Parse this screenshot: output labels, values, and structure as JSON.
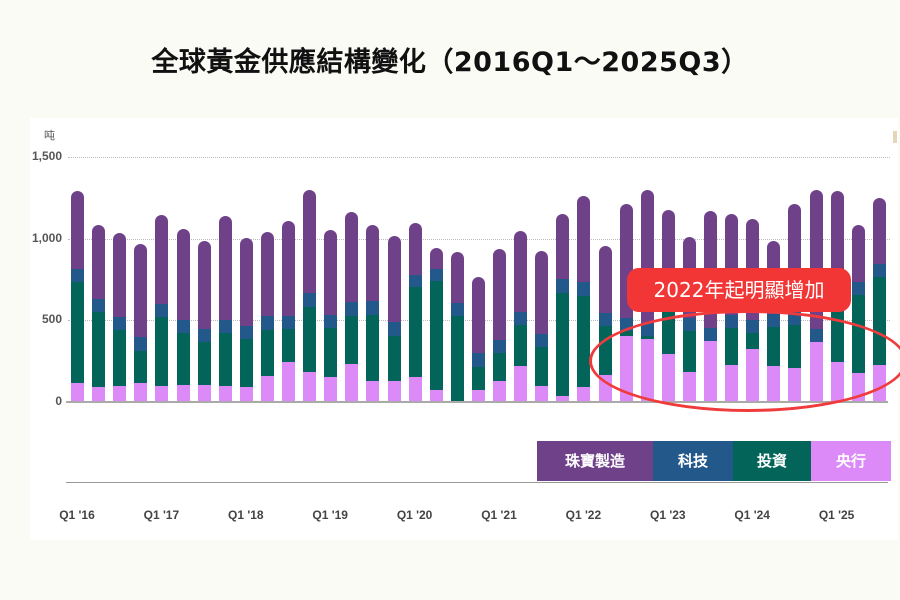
{
  "title": "全球黃金供應結構變化（2016Q1～2025Q3）",
  "chart": {
    "unit": "吨",
    "y_ticks": [
      "1,500",
      "1,000",
      "500",
      "0"
    ],
    "x_ticks": [
      "Q1 '16",
      "Q1 '17",
      "Q1 '18",
      "Q1 '19",
      "Q1 '20",
      "Q1 '21",
      "Q1 '22",
      "Q1 '23",
      "Q1 '24",
      "Q1 '25"
    ],
    "legend": [
      {
        "label": "珠寶製造",
        "color": "#6e4189"
      },
      {
        "label": "科技",
        "color": "#22588a"
      },
      {
        "label": "投資",
        "color": "#03645a"
      },
      {
        "label": "央行",
        "color": "#db8af7"
      }
    ],
    "annotation": "2022年起明顯增加"
  },
  "chart_data": {
    "type": "bar",
    "stacked": true,
    "title": "全球黃金供應結構變化（2016Q1～2025Q3）",
    "xlabel": "",
    "ylabel": "吨",
    "ylim": [
      0,
      1500
    ],
    "y_ticks": [
      0,
      500,
      1000,
      1500
    ],
    "grid": true,
    "legend_position": "bottom-right",
    "annotation": "2022年起明顯增加",
    "categories": [
      "2016Q1",
      "2016Q2",
      "2016Q3",
      "2016Q4",
      "2017Q1",
      "2017Q2",
      "2017Q3",
      "2017Q4",
      "2018Q1",
      "2018Q2",
      "2018Q3",
      "2018Q4",
      "2019Q1",
      "2019Q2",
      "2019Q3",
      "2019Q4",
      "2020Q1",
      "2020Q2",
      "2020Q3",
      "2020Q4",
      "2021Q1",
      "2021Q2",
      "2021Q3",
      "2021Q4",
      "2022Q1",
      "2022Q2",
      "2022Q3",
      "2022Q4",
      "2023Q1",
      "2023Q2",
      "2023Q3",
      "2023Q4",
      "2024Q1",
      "2024Q2",
      "2024Q3",
      "2024Q4",
      "2025Q1",
      "2025Q2",
      "2025Q3"
    ],
    "series": [
      {
        "name": "央行",
        "color": "#db8af7",
        "values": [
          110,
          85,
          95,
          110,
          95,
          100,
          100,
          95,
          85,
          155,
          240,
          180,
          145,
          230,
          120,
          120,
          145,
          70,
          -10,
          70,
          120,
          215,
          90,
          30,
          85,
          160,
          400,
          380,
          290,
          180,
          370,
          220,
          320,
          215,
          200,
          360,
          240,
          170,
          220
        ]
      },
      {
        "name": "投資",
        "color": "#03645a",
        "values": [
          620,
          460,
          340,
          200,
          420,
          315,
          260,
          325,
          295,
          280,
          200,
          400,
          305,
          295,
          410,
          280,
          555,
          665,
          525,
          140,
          175,
          250,
          240,
          635,
          560,
          300,
          30,
          20,
          280,
          250,
          0,
          230,
          100,
          240,
          270,
          0,
          400,
          480,
          540
        ]
      },
      {
        "name": "科技",
        "color": "#22588a",
        "values": [
          80,
          85,
          80,
          85,
          80,
          80,
          85,
          80,
          80,
          85,
          85,
          85,
          80,
          85,
          85,
          85,
          75,
          75,
          80,
          85,
          80,
          80,
          80,
          85,
          85,
          80,
          80,
          80,
          75,
          80,
          80,
          80,
          80,
          80,
          80,
          80,
          80,
          80,
          80
        ]
      },
      {
        "name": "珠寶製造",
        "color": "#6e4189",
        "values": [
          480,
          450,
          520,
          570,
          550,
          560,
          540,
          640,
          540,
          520,
          580,
          630,
          520,
          550,
          470,
          530,
          320,
          130,
          310,
          470,
          560,
          500,
          510,
          400,
          530,
          415,
          700,
          820,
          530,
          500,
          720,
          620,
          620,
          450,
          660,
          860,
          570,
          350,
          410
        ]
      }
    ]
  }
}
